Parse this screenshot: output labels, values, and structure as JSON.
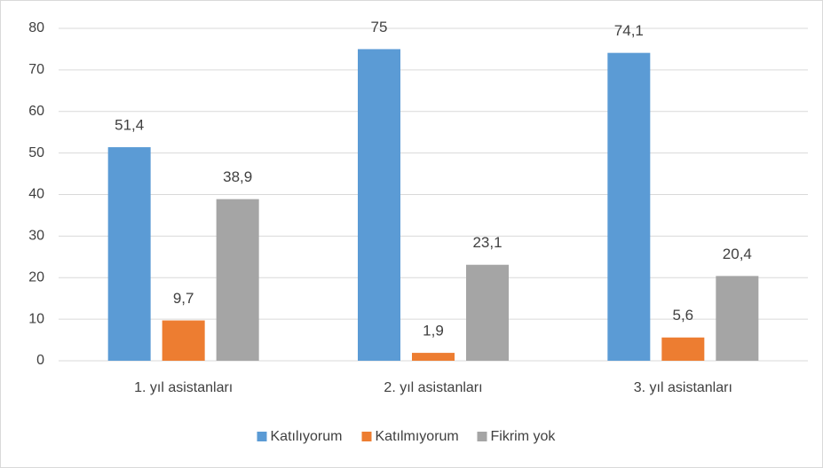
{
  "chart_data": {
    "type": "bar",
    "categories": [
      "1. yıl asistanları",
      "2. yıl asistanları",
      "3. yıl asistanları"
    ],
    "series": [
      {
        "name": "Katılıyorum",
        "color": "#5b9bd5",
        "values": [
          51.4,
          75,
          74.1
        ],
        "value_labels": [
          "51,4",
          "75",
          "74,1"
        ]
      },
      {
        "name": "Katılmıyorum",
        "color": "#ed7d31",
        "values": [
          9.7,
          1.9,
          5.6
        ],
        "value_labels": [
          "9,7",
          "1,9",
          "5,6"
        ]
      },
      {
        "name": "Fikrim yok",
        "color": "#a5a5a5",
        "values": [
          38.9,
          23.1,
          20.4
        ],
        "value_labels": [
          "38,9",
          "23,1",
          "20,4"
        ]
      }
    ],
    "ylim": [
      0,
      80
    ],
    "yticks": [
      0,
      10,
      20,
      30,
      40,
      50,
      60,
      70,
      80
    ],
    "grid": true,
    "legend": "bottom"
  }
}
